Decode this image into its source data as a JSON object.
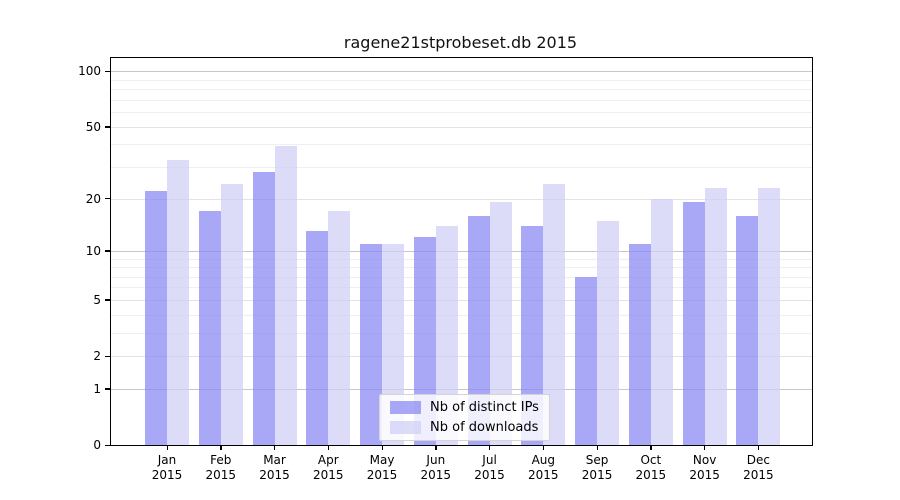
{
  "chart_data": {
    "type": "bar",
    "title": "ragene21stprobeset.db 2015",
    "categories": [
      "Jan",
      "Feb",
      "Mar",
      "Apr",
      "May",
      "Jun",
      "Jul",
      "Aug",
      "Sep",
      "Oct",
      "Nov",
      "Dec"
    ],
    "year_label": "2015",
    "series": [
      {
        "name": "Nb of distinct IPs",
        "color": "rgba(134,134,243,0.72)",
        "values": [
          22,
          17,
          28,
          13,
          11,
          12,
          16,
          14,
          7,
          11,
          19,
          16
        ]
      },
      {
        "name": "Nb of downloads",
        "color": "rgba(206,206,246,0.72)",
        "values": [
          33,
          24,
          39,
          17,
          11,
          14,
          19,
          24,
          15,
          20,
          23,
          23
        ]
      }
    ],
    "y_axis": {
      "scale": "log1p",
      "tick_values": [
        0,
        1,
        2,
        5,
        10,
        20,
        50,
        100
      ],
      "tick_labels": [
        "0",
        "1",
        "2",
        "5",
        "10",
        "20",
        "50",
        "100"
      ],
      "minor_gridline_values": [
        3,
        4,
        6,
        7,
        8,
        9,
        30,
        40,
        60,
        70,
        80,
        90
      ],
      "decade_values": [
        1,
        10,
        100
      ],
      "ylim_top": 120
    },
    "grid": {
      "decade_color": "#c8c8c8",
      "labeled_color": "#e3e3e3",
      "minor_color": "#efefef",
      "on": true
    },
    "legend_position": "bottom-center",
    "frame_color": "#000000",
    "background_color": "#ffffff"
  }
}
